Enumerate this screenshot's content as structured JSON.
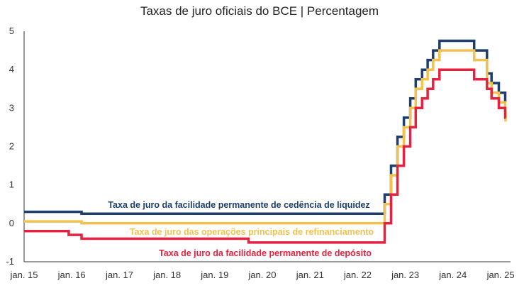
{
  "chart_data": {
    "type": "line",
    "title": "Taxas de juro oficiais do BCE | Percentagem",
    "xlabel": "",
    "ylabel": "",
    "x_range": [
      "2015-01-01",
      "2025-03-31"
    ],
    "ylim": [
      -1,
      5
    ],
    "y_ticks": [
      "5",
      "4",
      "3",
      "2",
      "1",
      "0",
      "-1"
    ],
    "x_ticks": [
      {
        "label": "jan. 15",
        "date": "2015-01-01"
      },
      {
        "label": "jan. 16",
        "date": "2016-01-01"
      },
      {
        "label": "jan. 17",
        "date": "2017-01-01"
      },
      {
        "label": "jan. 18",
        "date": "2018-01-01"
      },
      {
        "label": "jan. 19",
        "date": "2019-01-01"
      },
      {
        "label": "jan. 20",
        "date": "2020-01-01"
      },
      {
        "label": "jan. 21",
        "date": "2021-01-01"
      },
      {
        "label": "jan. 22",
        "date": "2022-01-01"
      },
      {
        "label": "jan. 23",
        "date": "2023-01-01"
      },
      {
        "label": "jan. 24",
        "date": "2024-01-01"
      },
      {
        "label": "jan. 25",
        "date": "2025-01-01"
      }
    ],
    "grid": false,
    "series": [
      {
        "name": "Taxa de juro da facilidade permanente de cedência de liquidez",
        "color": "#1d3f6e",
        "steps": [
          {
            "date": "2015-01-01",
            "value": 0.3
          },
          {
            "date": "2016-03-16",
            "value": 0.25
          },
          {
            "date": "2022-07-27",
            "value": 0.75
          },
          {
            "date": "2022-09-14",
            "value": 1.5
          },
          {
            "date": "2022-11-02",
            "value": 2.25
          },
          {
            "date": "2022-12-21",
            "value": 2.75
          },
          {
            "date": "2023-02-08",
            "value": 3.25
          },
          {
            "date": "2023-03-22",
            "value": 3.75
          },
          {
            "date": "2023-05-10",
            "value": 4.0
          },
          {
            "date": "2023-06-21",
            "value": 4.25
          },
          {
            "date": "2023-08-02",
            "value": 4.5
          },
          {
            "date": "2023-09-20",
            "value": 4.75
          },
          {
            "date": "2024-06-12",
            "value": 4.5
          },
          {
            "date": "2024-09-18",
            "value": 3.9
          },
          {
            "date": "2024-10-23",
            "value": 3.65
          },
          {
            "date": "2024-12-18",
            "value": 3.4
          },
          {
            "date": "2025-02-05",
            "value": 3.15
          },
          {
            "date": "2025-03-31",
            "value": 3.15
          }
        ]
      },
      {
        "name": "Taxa de juro das operações principais de refinanciamento",
        "color": "#f2c14e",
        "steps": [
          {
            "date": "2015-01-01",
            "value": 0.05
          },
          {
            "date": "2016-03-16",
            "value": 0.0
          },
          {
            "date": "2022-07-27",
            "value": 0.5
          },
          {
            "date": "2022-09-14",
            "value": 1.25
          },
          {
            "date": "2022-11-02",
            "value": 2.0
          },
          {
            "date": "2022-12-21",
            "value": 2.5
          },
          {
            "date": "2023-02-08",
            "value": 3.0
          },
          {
            "date": "2023-03-22",
            "value": 3.5
          },
          {
            "date": "2023-05-10",
            "value": 3.75
          },
          {
            "date": "2023-06-21",
            "value": 4.0
          },
          {
            "date": "2023-08-02",
            "value": 4.25
          },
          {
            "date": "2023-09-20",
            "value": 4.5
          },
          {
            "date": "2024-06-12",
            "value": 4.25
          },
          {
            "date": "2024-09-18",
            "value": 3.65
          },
          {
            "date": "2024-10-23",
            "value": 3.4
          },
          {
            "date": "2024-12-18",
            "value": 3.15
          },
          {
            "date": "2025-02-05",
            "value": 2.9
          },
          {
            "date": "2025-03-12",
            "value": 2.65
          },
          {
            "date": "2025-03-31",
            "value": 2.65
          }
        ]
      },
      {
        "name": "Taxa de juro da facilidade permanente de depósito",
        "color": "#e3233f",
        "steps": [
          {
            "date": "2015-01-01",
            "value": -0.2
          },
          {
            "date": "2015-12-09",
            "value": -0.3
          },
          {
            "date": "2016-03-16",
            "value": -0.4
          },
          {
            "date": "2019-09-18",
            "value": -0.5
          },
          {
            "date": "2022-07-27",
            "value": 0.0
          },
          {
            "date": "2022-09-14",
            "value": 0.75
          },
          {
            "date": "2022-11-02",
            "value": 1.5
          },
          {
            "date": "2022-12-21",
            "value": 2.0
          },
          {
            "date": "2023-02-08",
            "value": 2.5
          },
          {
            "date": "2023-03-22",
            "value": 3.0
          },
          {
            "date": "2023-05-10",
            "value": 3.25
          },
          {
            "date": "2023-06-21",
            "value": 3.5
          },
          {
            "date": "2023-08-02",
            "value": 3.75
          },
          {
            "date": "2023-09-20",
            "value": 4.0
          },
          {
            "date": "2024-06-12",
            "value": 3.75
          },
          {
            "date": "2024-09-18",
            "value": 3.5
          },
          {
            "date": "2024-10-23",
            "value": 3.25
          },
          {
            "date": "2024-12-18",
            "value": 3.0
          },
          {
            "date": "2025-02-05",
            "value": 2.75
          },
          {
            "date": "2025-03-31",
            "value": 2.75
          }
        ]
      }
    ]
  }
}
